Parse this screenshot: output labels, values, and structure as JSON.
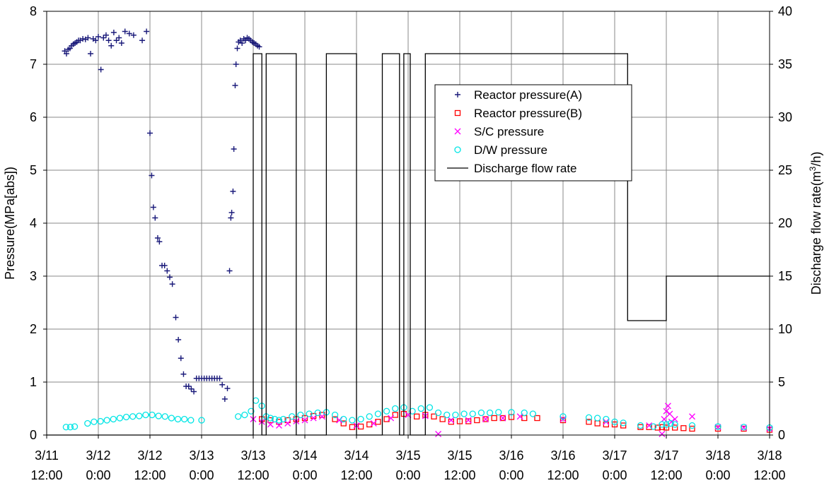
{
  "chart_data": {
    "type": "scatter",
    "x_axis": {
      "type": "time",
      "min": "3/11 12:00",
      "max": "3/18 12:00",
      "min_hours": 0,
      "max_hours": 168,
      "tick_labels": [
        [
          "3/11",
          "12:00"
        ],
        [
          "3/12",
          "0:00"
        ],
        [
          "3/12",
          "12:00"
        ],
        [
          "3/13",
          "0:00"
        ],
        [
          "3/13",
          "12:00"
        ],
        [
          "3/14",
          "0:00"
        ],
        [
          "3/14",
          "12:00"
        ],
        [
          "3/15",
          "0:00"
        ],
        [
          "3/15",
          "12:00"
        ],
        [
          "3/16",
          "0:00"
        ],
        [
          "3/16",
          "12:00"
        ],
        [
          "3/17",
          "0:00"
        ],
        [
          "3/17",
          "12:00"
        ],
        [
          "3/18",
          "0:00"
        ],
        [
          "3/18",
          "12:00"
        ]
      ]
    },
    "y_left": {
      "label": "Pressure(MPa[abs])",
      "min": 0,
      "max": 8,
      "ticks": [
        "0",
        "1",
        "2",
        "3",
        "4",
        "5",
        "6",
        "7",
        "8"
      ]
    },
    "y_right": {
      "label": "Discharge flow rate(m³/h)",
      "min": 0,
      "max": 40,
      "ticks": [
        "0",
        "5",
        "10",
        "15",
        "20",
        "25",
        "30",
        "35",
        "40"
      ]
    },
    "grid": true,
    "legend_position": "top-right",
    "series": [
      {
        "name": "Reactor pressure(A)",
        "marker": "plus",
        "color": "#1a1a7a",
        "axis": "left",
        "points": [
          [
            4.2,
            7.25
          ],
          [
            4.6,
            7.2
          ],
          [
            5.0,
            7.28
          ],
          [
            5.4,
            7.3
          ],
          [
            5.8,
            7.35
          ],
          [
            6.2,
            7.38
          ],
          [
            6.6,
            7.4
          ],
          [
            7.0,
            7.42
          ],
          [
            7.4,
            7.45
          ],
          [
            7.8,
            7.45
          ],
          [
            8.4,
            7.48
          ],
          [
            9.0,
            7.47
          ],
          [
            9.6,
            7.5
          ],
          [
            10.2,
            7.2
          ],
          [
            10.8,
            7.48
          ],
          [
            11.4,
            7.45
          ],
          [
            12.0,
            7.52
          ],
          [
            12.6,
            6.9
          ],
          [
            13.2,
            7.5
          ],
          [
            13.8,
            7.55
          ],
          [
            14.4,
            7.45
          ],
          [
            15.0,
            7.35
          ],
          [
            15.6,
            7.6
          ],
          [
            16.2,
            7.45
          ],
          [
            16.8,
            7.5
          ],
          [
            17.4,
            7.4
          ],
          [
            18.2,
            7.62
          ],
          [
            19.2,
            7.58
          ],
          [
            20.2,
            7.55
          ],
          [
            22.2,
            7.45
          ],
          [
            23.2,
            7.62
          ],
          [
            24.0,
            5.7
          ],
          [
            24.4,
            4.9
          ],
          [
            24.8,
            4.3
          ],
          [
            25.2,
            4.1
          ],
          [
            25.8,
            3.72
          ],
          [
            26.2,
            3.65
          ],
          [
            26.8,
            3.2
          ],
          [
            27.4,
            3.2
          ],
          [
            28.0,
            3.1
          ],
          [
            28.6,
            2.98
          ],
          [
            29.2,
            2.85
          ],
          [
            30.0,
            2.22
          ],
          [
            30.6,
            1.8
          ],
          [
            31.2,
            1.45
          ],
          [
            31.8,
            1.15
          ],
          [
            32.4,
            0.92
          ],
          [
            33.0,
            0.92
          ],
          [
            33.6,
            0.87
          ],
          [
            34.2,
            0.82
          ],
          [
            34.8,
            1.07
          ],
          [
            35.4,
            1.07
          ],
          [
            36.0,
            1.07
          ],
          [
            36.6,
            1.07
          ],
          [
            37.2,
            1.07
          ],
          [
            37.8,
            1.07
          ],
          [
            38.4,
            1.07
          ],
          [
            39.0,
            1.07
          ],
          [
            39.6,
            1.07
          ],
          [
            40.2,
            1.07
          ],
          [
            40.8,
            0.95
          ],
          [
            41.4,
            0.68
          ],
          [
            42.0,
            0.88
          ],
          [
            42.5,
            3.1
          ],
          [
            42.8,
            4.1
          ],
          [
            43.0,
            4.2
          ],
          [
            43.3,
            4.6
          ],
          [
            43.5,
            5.4
          ],
          [
            43.8,
            6.6
          ],
          [
            44.0,
            7.0
          ],
          [
            44.3,
            7.3
          ],
          [
            44.6,
            7.42
          ],
          [
            45.0,
            7.45
          ],
          [
            45.4,
            7.4
          ],
          [
            45.8,
            7.48
          ],
          [
            46.2,
            7.45
          ],
          [
            46.6,
            7.5
          ],
          [
            47.0,
            7.48
          ],
          [
            47.4,
            7.45
          ],
          [
            47.8,
            7.42
          ],
          [
            48.2,
            7.4
          ],
          [
            48.6,
            7.38
          ],
          [
            49.0,
            7.35
          ],
          [
            49.4,
            7.33
          ]
        ]
      },
      {
        "name": "Reactor pressure(B)",
        "marker": "square",
        "color": "#ff0000",
        "axis": "left",
        "points": [
          [
            50,
            0.3
          ],
          [
            52,
            0.28
          ],
          [
            54,
            0.25
          ],
          [
            56,
            0.28
          ],
          [
            58,
            0.3
          ],
          [
            60,
            0.32
          ],
          [
            62,
            0.36
          ],
          [
            64,
            0.38
          ],
          [
            67,
            0.3
          ],
          [
            69,
            0.22
          ],
          [
            71,
            0.15
          ],
          [
            73,
            0.16
          ],
          [
            75,
            0.2
          ],
          [
            77,
            0.25
          ],
          [
            79,
            0.3
          ],
          [
            81,
            0.38
          ],
          [
            83,
            0.4
          ],
          [
            86,
            0.35
          ],
          [
            88,
            0.38
          ],
          [
            90,
            0.35
          ],
          [
            92,
            0.3
          ],
          [
            94,
            0.25
          ],
          [
            96,
            0.26
          ],
          [
            98,
            0.26
          ],
          [
            100,
            0.28
          ],
          [
            102,
            0.3
          ],
          [
            104,
            0.32
          ],
          [
            106,
            0.32
          ],
          [
            108,
            0.34
          ],
          [
            111,
            0.32
          ],
          [
            114,
            0.32
          ],
          [
            120,
            0.28
          ],
          [
            126,
            0.25
          ],
          [
            128,
            0.22
          ],
          [
            130,
            0.2
          ],
          [
            132,
            0.2
          ],
          [
            134,
            0.18
          ],
          [
            138,
            0.15
          ],
          [
            140,
            0.15
          ],
          [
            142,
            0.14
          ],
          [
            143,
            0.15
          ],
          [
            144,
            0.14
          ],
          [
            146,
            0.14
          ],
          [
            148,
            0.13
          ],
          [
            150,
            0.12
          ],
          [
            156,
            0.12
          ],
          [
            162,
            0.12
          ],
          [
            168,
            0.1
          ]
        ]
      },
      {
        "name": "S/C pressure",
        "marker": "x",
        "color": "#ff00ff",
        "axis": "left",
        "points": [
          [
            48,
            0.3
          ],
          [
            50,
            0.25
          ],
          [
            52,
            0.2
          ],
          [
            54,
            0.18
          ],
          [
            56,
            0.22
          ],
          [
            58,
            0.26
          ],
          [
            60,
            0.28
          ],
          [
            62,
            0.32
          ],
          [
            64,
            0.35
          ],
          [
            68,
            0.28
          ],
          [
            72,
            0.18
          ],
          [
            76,
            0.22
          ],
          [
            80,
            0.32
          ],
          [
            84,
            0.38
          ],
          [
            88,
            0.36
          ],
          [
            91,
            0.02
          ],
          [
            94,
            0.28
          ],
          [
            98,
            0.28
          ],
          [
            102,
            0.3
          ],
          [
            106,
            0.32
          ],
          [
            110,
            0.35
          ],
          [
            120,
            0.3
          ],
          [
            130,
            0.25
          ],
          [
            140,
            0.18
          ],
          [
            143,
            0.02
          ],
          [
            143.5,
            0.3
          ],
          [
            144,
            0.45
          ],
          [
            144.4,
            0.55
          ],
          [
            144.8,
            0.4
          ],
          [
            145.2,
            0.25
          ],
          [
            146,
            0.3
          ],
          [
            150,
            0.35
          ],
          [
            156,
            0.15
          ],
          [
            162,
            0.14
          ],
          [
            168,
            0.12
          ]
        ]
      },
      {
        "name": "D/W pressure",
        "marker": "circle",
        "color": "#00e5e5",
        "axis": "left",
        "points": [
          [
            4.5,
            0.15
          ],
          [
            5.5,
            0.15
          ],
          [
            6.5,
            0.16
          ],
          [
            9.5,
            0.22
          ],
          [
            11,
            0.25
          ],
          [
            12.5,
            0.26
          ],
          [
            14,
            0.28
          ],
          [
            15.5,
            0.3
          ],
          [
            17,
            0.32
          ],
          [
            18.5,
            0.34
          ],
          [
            20,
            0.35
          ],
          [
            21.5,
            0.36
          ],
          [
            23,
            0.38
          ],
          [
            24.5,
            0.38
          ],
          [
            26,
            0.36
          ],
          [
            27.5,
            0.35
          ],
          [
            29,
            0.32
          ],
          [
            30.5,
            0.3
          ],
          [
            32,
            0.3
          ],
          [
            33.5,
            0.28
          ],
          [
            36,
            0.28
          ],
          [
            44.5,
            0.35
          ],
          [
            46,
            0.38
          ],
          [
            47.5,
            0.45
          ],
          [
            48.6,
            0.65
          ],
          [
            50,
            0.55
          ],
          [
            51,
            0.35
          ],
          [
            52,
            0.32
          ],
          [
            53,
            0.3
          ],
          [
            54,
            0.28
          ],
          [
            55,
            0.3
          ],
          [
            57,
            0.35
          ],
          [
            59,
            0.38
          ],
          [
            61,
            0.4
          ],
          [
            63,
            0.42
          ],
          [
            65,
            0.43
          ],
          [
            67,
            0.38
          ],
          [
            69,
            0.3
          ],
          [
            71,
            0.28
          ],
          [
            73,
            0.3
          ],
          [
            75,
            0.35
          ],
          [
            77,
            0.4
          ],
          [
            79,
            0.45
          ],
          [
            81,
            0.5
          ],
          [
            83,
            0.52
          ],
          [
            85,
            0.45
          ],
          [
            87,
            0.5
          ],
          [
            89,
            0.52
          ],
          [
            91,
            0.42
          ],
          [
            93,
            0.38
          ],
          [
            95,
            0.38
          ],
          [
            97,
            0.4
          ],
          [
            99,
            0.4
          ],
          [
            101,
            0.42
          ],
          [
            103,
            0.42
          ],
          [
            105,
            0.43
          ],
          [
            108,
            0.43
          ],
          [
            111,
            0.42
          ],
          [
            113,
            0.4
          ],
          [
            120,
            0.35
          ],
          [
            126,
            0.33
          ],
          [
            128,
            0.32
          ],
          [
            130,
            0.3
          ],
          [
            132,
            0.25
          ],
          [
            134,
            0.23
          ],
          [
            138,
            0.18
          ],
          [
            141,
            0.16
          ],
          [
            143,
            0.2
          ],
          [
            144,
            0.2
          ],
          [
            145,
            0.22
          ],
          [
            146,
            0.2
          ],
          [
            150,
            0.18
          ],
          [
            156,
            0.16
          ],
          [
            162,
            0.15
          ],
          [
            168,
            0.14
          ]
        ]
      },
      {
        "name": "Discharge flow rate",
        "marker": "line",
        "color": "#000000",
        "axis": "right",
        "steps": [
          [
            0,
            0
          ],
          [
            48,
            0
          ],
          [
            48,
            36
          ],
          [
            50,
            36
          ],
          [
            50,
            0
          ],
          [
            51,
            0
          ],
          [
            51,
            36
          ],
          [
            58,
            36
          ],
          [
            58,
            0
          ],
          [
            65,
            0
          ],
          [
            65,
            36
          ],
          [
            72,
            36
          ],
          [
            72,
            0
          ],
          [
            78,
            0
          ],
          [
            78,
            36
          ],
          [
            82,
            36
          ],
          [
            82,
            0
          ],
          [
            83,
            0
          ],
          [
            83,
            36
          ],
          [
            84.5,
            36
          ],
          [
            84.5,
            0
          ],
          [
            88,
            0
          ],
          [
            88,
            36
          ],
          [
            135,
            36
          ],
          [
            135,
            10.8
          ],
          [
            144,
            10.8
          ],
          [
            144,
            15
          ],
          [
            168,
            15
          ]
        ]
      }
    ]
  },
  "legend_labels": [
    "Reactor pressure(A)",
    "Reactor pressure(B)",
    "S/C pressure",
    "D/W pressure",
    "Discharge flow rate"
  ],
  "y_left_label": "Pressure(MPa[abs])",
  "y_right_label_main": "Discharge flow rate(m",
  "y_right_label_sup": "3",
  "y_right_label_end": "/h)"
}
